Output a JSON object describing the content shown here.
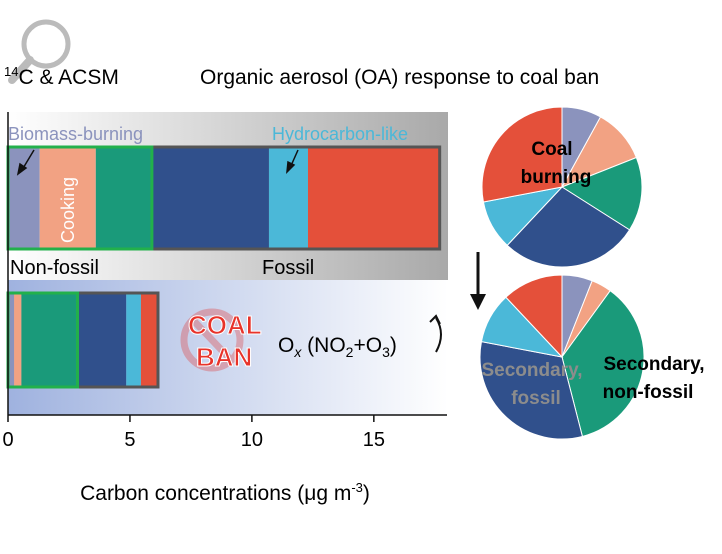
{
  "header": {
    "method_sup": "14",
    "method": "C & ACSM",
    "title": "Organic aerosol (OA) response to coal ban"
  },
  "annotations": {
    "biomass": "Biomass-burning",
    "hydrocarbon": "Hydrocarbon-like",
    "cooking": "Cooking",
    "non_fossil": "Non-fossil",
    "fossil": "Fossil",
    "coal_ban": [
      "COAL",
      "BAN"
    ],
    "ox": [
      "O",
      "x",
      " (NO",
      "2",
      "+O",
      "3",
      ")"
    ],
    "coal_burning": [
      "Coal",
      "burning"
    ],
    "secondary_fossil": [
      "Secondary,",
      "fossil"
    ],
    "secondary_non_fossil": [
      "Secondary,",
      "non-fossil"
    ]
  },
  "chart_data": [
    {
      "type": "bar",
      "orientation": "horizontal",
      "stacked": true,
      "categories": [
        null,
        null
      ],
      "series": [
        {
          "name": "Biomass-burning",
          "color": "#8b93bd",
          "values": [
            1.3,
            0.25
          ]
        },
        {
          "name": "Cooking",
          "color": "#f2a283",
          "values": [
            2.3,
            0.3
          ]
        },
        {
          "color": "#1a9a7a",
          "values": [
            2.3,
            2.3
          ]
        },
        {
          "color": "#30508c",
          "values": [
            4.8,
            2.0
          ]
        },
        {
          "name": "Hydrocarbon-like",
          "color": "#4bb8d8",
          "values": [
            1.6,
            0.6
          ]
        },
        {
          "color": "#e4503a",
          "values": [
            5.4,
            0.7
          ]
        }
      ],
      "xlim": [
        0,
        18
      ],
      "xticks": [
        0,
        5,
        10,
        15
      ],
      "xlabel": [
        "Carbon concentrations (μg m",
        "-3",
        ")"
      ]
    },
    {
      "type": "pie",
      "values": [
        8,
        11,
        15,
        28,
        10,
        28
      ],
      "colors": [
        "#8b93bd",
        "#f2a283",
        "#1a9a7a",
        "#30508c",
        "#4bb8d8",
        "#e4503a"
      ]
    },
    {
      "type": "pie",
      "values": [
        6,
        4,
        36,
        32,
        10,
        12
      ],
      "colors": [
        "#8b93bd",
        "#f2a283",
        "#1a9a7a",
        "#30508c",
        "#4bb8d8",
        "#e4503a"
      ]
    }
  ]
}
